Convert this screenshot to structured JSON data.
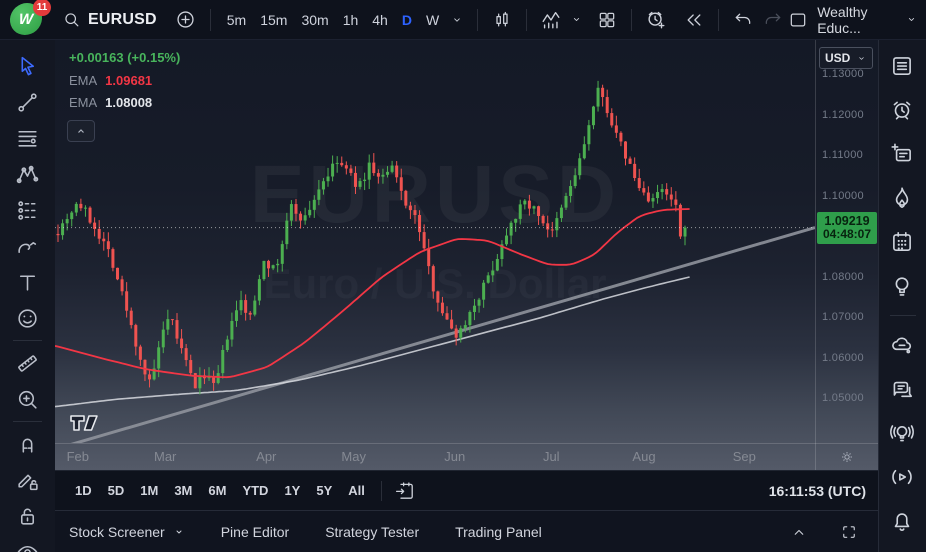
{
  "header": {
    "logo_glyph": "W",
    "notification_badge": "11",
    "symbol": "EURUSD",
    "timeframes": [
      "5m",
      "15m",
      "30m",
      "1h",
      "4h",
      "D",
      "W"
    ],
    "active_timeframe": "D",
    "account_name": "Wealthy Educ...",
    "icons": [
      "search-icon",
      "plus-circle-icon",
      "chevron-down-icon",
      "candles-icon",
      "indicators-icon",
      "layout-grid-icon",
      "alert-plus-icon",
      "replay-icon",
      "undo-icon",
      "redo-icon",
      "layout-square-icon"
    ]
  },
  "left_toolbar": {
    "active_tool": "cursor",
    "tools": [
      "cursor",
      "trend-line",
      "fib-retracement",
      "xabcd-pattern",
      "forecast",
      "brush",
      "text",
      "emoji",
      "ruler",
      "zoom-in",
      "magnet",
      "drawing-lock",
      "lock-open",
      "eye"
    ]
  },
  "right_sidebar": {
    "icons": [
      "watchlist",
      "alerts",
      "supercharts",
      "hotlists",
      "calendar",
      "ideas",
      "minds",
      "chat",
      "live",
      "streams",
      "notifications"
    ]
  },
  "legend": {
    "change": "+0.00163 (+0.15%)",
    "emas": [
      {
        "label": "EMA",
        "value": "1.09681"
      },
      {
        "label": "EMA",
        "value": "1.08008"
      }
    ]
  },
  "price_scale": {
    "currency": "USD",
    "ticks": [
      "1.13000",
      "1.12000",
      "1.11000",
      "1.10000",
      "1.08000",
      "1.07000",
      "1.06000",
      "1.05000"
    ],
    "last_price": "1.09219",
    "countdown": "04:48:07"
  },
  "time_axis": {
    "months": [
      "Feb",
      "Mar",
      "Apr",
      "May",
      "Jun",
      "Jul",
      "Aug",
      "Sep"
    ]
  },
  "watermark": {
    "title": "EURUSD",
    "subtitle": "Euro / U.S. Dollar"
  },
  "range_toolbar": {
    "ranges": [
      "1D",
      "5D",
      "1M",
      "3M",
      "6M",
      "YTD",
      "1Y",
      "5Y",
      "All"
    ],
    "clock": "16:11:53 (UTC)"
  },
  "bottom_bar": {
    "tabs": [
      "Stock Screener",
      "Pine Editor",
      "Strategy Tester",
      "Trading Panel"
    ]
  },
  "colors": {
    "candle_up": "#4caf50",
    "candle_down": "#ef5350",
    "ema_fast": "#f23645",
    "ema_slow": "#d8dbe0",
    "trendline": "#8f939c",
    "accent_blue": "#2d62ff",
    "last_label_bg": "#2f9e4b",
    "change_green": "#48b45c"
  },
  "chart_data": {
    "type": "candlestick",
    "symbol": "EURUSD",
    "description": "Euro / U.S. Dollar",
    "timeframe": "D",
    "currency": "USD",
    "last_price": 1.09219,
    "change": 0.00163,
    "change_pct": 0.15,
    "countdown": "04:48:07",
    "candle_count": 138,
    "seed": 7,
    "y_axis": {
      "min": 1.044,
      "max": 1.131,
      "ticks": [
        1.13,
        1.12,
        1.11,
        1.1,
        1.08,
        1.07,
        1.06,
        1.05
      ]
    },
    "x_axis": {
      "months": [
        "Feb",
        "Mar",
        "Apr",
        "May",
        "Jun",
        "Jul",
        "Aug",
        "Sep"
      ],
      "month_t": [
        0.03,
        0.145,
        0.278,
        0.393,
        0.526,
        0.653,
        0.775,
        0.907
      ]
    },
    "key_levels": {
      "feb_high": 1.1027,
      "mar_low": 1.0515,
      "may_high": 1.1101,
      "jun_low": 1.0635,
      "jul_high": 1.1275
    },
    "price_path": [
      [
        0.004,
        1.0915
      ],
      [
        0.018,
        1.0955
      ],
      [
        0.03,
        1.0985
      ],
      [
        0.04,
        1.096
      ],
      [
        0.055,
        1.0915
      ],
      [
        0.072,
        1.086
      ],
      [
        0.088,
        1.076
      ],
      [
        0.105,
        1.0645
      ],
      [
        0.118,
        1.0565
      ],
      [
        0.126,
        1.053
      ],
      [
        0.138,
        1.064
      ],
      [
        0.152,
        1.07
      ],
      [
        0.168,
        1.061
      ],
      [
        0.184,
        1.053
      ],
      [
        0.198,
        1.0565
      ],
      [
        0.21,
        1.0522
      ],
      [
        0.226,
        1.065
      ],
      [
        0.244,
        1.074
      ],
      [
        0.258,
        1.0695
      ],
      [
        0.274,
        1.085
      ],
      [
        0.29,
        1.081
      ],
      [
        0.31,
        1.0975
      ],
      [
        0.328,
        1.094
      ],
      [
        0.35,
        1.103
      ],
      [
        0.372,
        1.1085
      ],
      [
        0.385,
        1.106
      ],
      [
        0.4,
        1.102
      ],
      [
        0.414,
        1.1078
      ],
      [
        0.428,
        1.104
      ],
      [
        0.444,
        1.1068
      ],
      [
        0.46,
        1.099
      ],
      [
        0.478,
        1.093
      ],
      [
        0.495,
        1.079
      ],
      [
        0.515,
        1.069
      ],
      [
        0.53,
        1.0655
      ],
      [
        0.548,
        1.072
      ],
      [
        0.565,
        1.078
      ],
      [
        0.582,
        1.085
      ],
      [
        0.6,
        1.094
      ],
      [
        0.62,
        1.0988
      ],
      [
        0.638,
        1.095
      ],
      [
        0.654,
        1.0905
      ],
      [
        0.67,
        1.0985
      ],
      [
        0.688,
        1.107
      ],
      [
        0.702,
        1.117
      ],
      [
        0.714,
        1.1258
      ],
      [
        0.724,
        1.123
      ],
      [
        0.738,
        1.115
      ],
      [
        0.752,
        1.1095
      ],
      [
        0.768,
        1.102
      ],
      [
        0.784,
        1.099
      ],
      [
        0.8,
        1.1012
      ],
      [
        0.814,
        1.098
      ],
      [
        0.826,
        1.0935
      ],
      [
        0.835,
        1.09219
      ]
    ],
    "emas": [
      {
        "label": "EMA",
        "value": 1.09681,
        "color": "#f23645",
        "path": [
          [
            0.0,
            1.063
          ],
          [
            0.06,
            1.06
          ],
          [
            0.12,
            1.0572
          ],
          [
            0.18,
            1.0556
          ],
          [
            0.23,
            1.0552
          ],
          [
            0.28,
            1.0578
          ],
          [
            0.33,
            1.064
          ],
          [
            0.38,
            1.0718
          ],
          [
            0.43,
            1.08
          ],
          [
            0.48,
            1.0862
          ],
          [
            0.53,
            1.0895
          ],
          [
            0.57,
            1.089
          ],
          [
            0.61,
            1.0858
          ],
          [
            0.65,
            1.083
          ],
          [
            0.68,
            1.083
          ],
          [
            0.71,
            1.0855
          ],
          [
            0.74,
            1.091
          ],
          [
            0.77,
            1.0952
          ],
          [
            0.8,
            1.0966
          ],
          [
            0.835,
            1.0968
          ]
        ]
      },
      {
        "label": "EMA",
        "value": 1.08008,
        "color": "#d8dbe0",
        "path": [
          [
            0.0,
            1.048
          ],
          [
            0.08,
            1.0498
          ],
          [
            0.16,
            1.051
          ],
          [
            0.24,
            1.052
          ],
          [
            0.32,
            1.0545
          ],
          [
            0.4,
            1.058
          ],
          [
            0.48,
            1.062
          ],
          [
            0.56,
            1.066
          ],
          [
            0.64,
            1.07
          ],
          [
            0.72,
            1.0745
          ],
          [
            0.78,
            1.0775
          ],
          [
            0.835,
            1.08
          ]
        ]
      }
    ],
    "trendline": {
      "from": [
        0.0,
        1.0375
      ],
      "to": [
        1.0,
        1.0922
      ],
      "color": "#8f939c",
      "width": 3
    },
    "last_price_line": {
      "price": 1.09219,
      "style": "dotted"
    }
  }
}
